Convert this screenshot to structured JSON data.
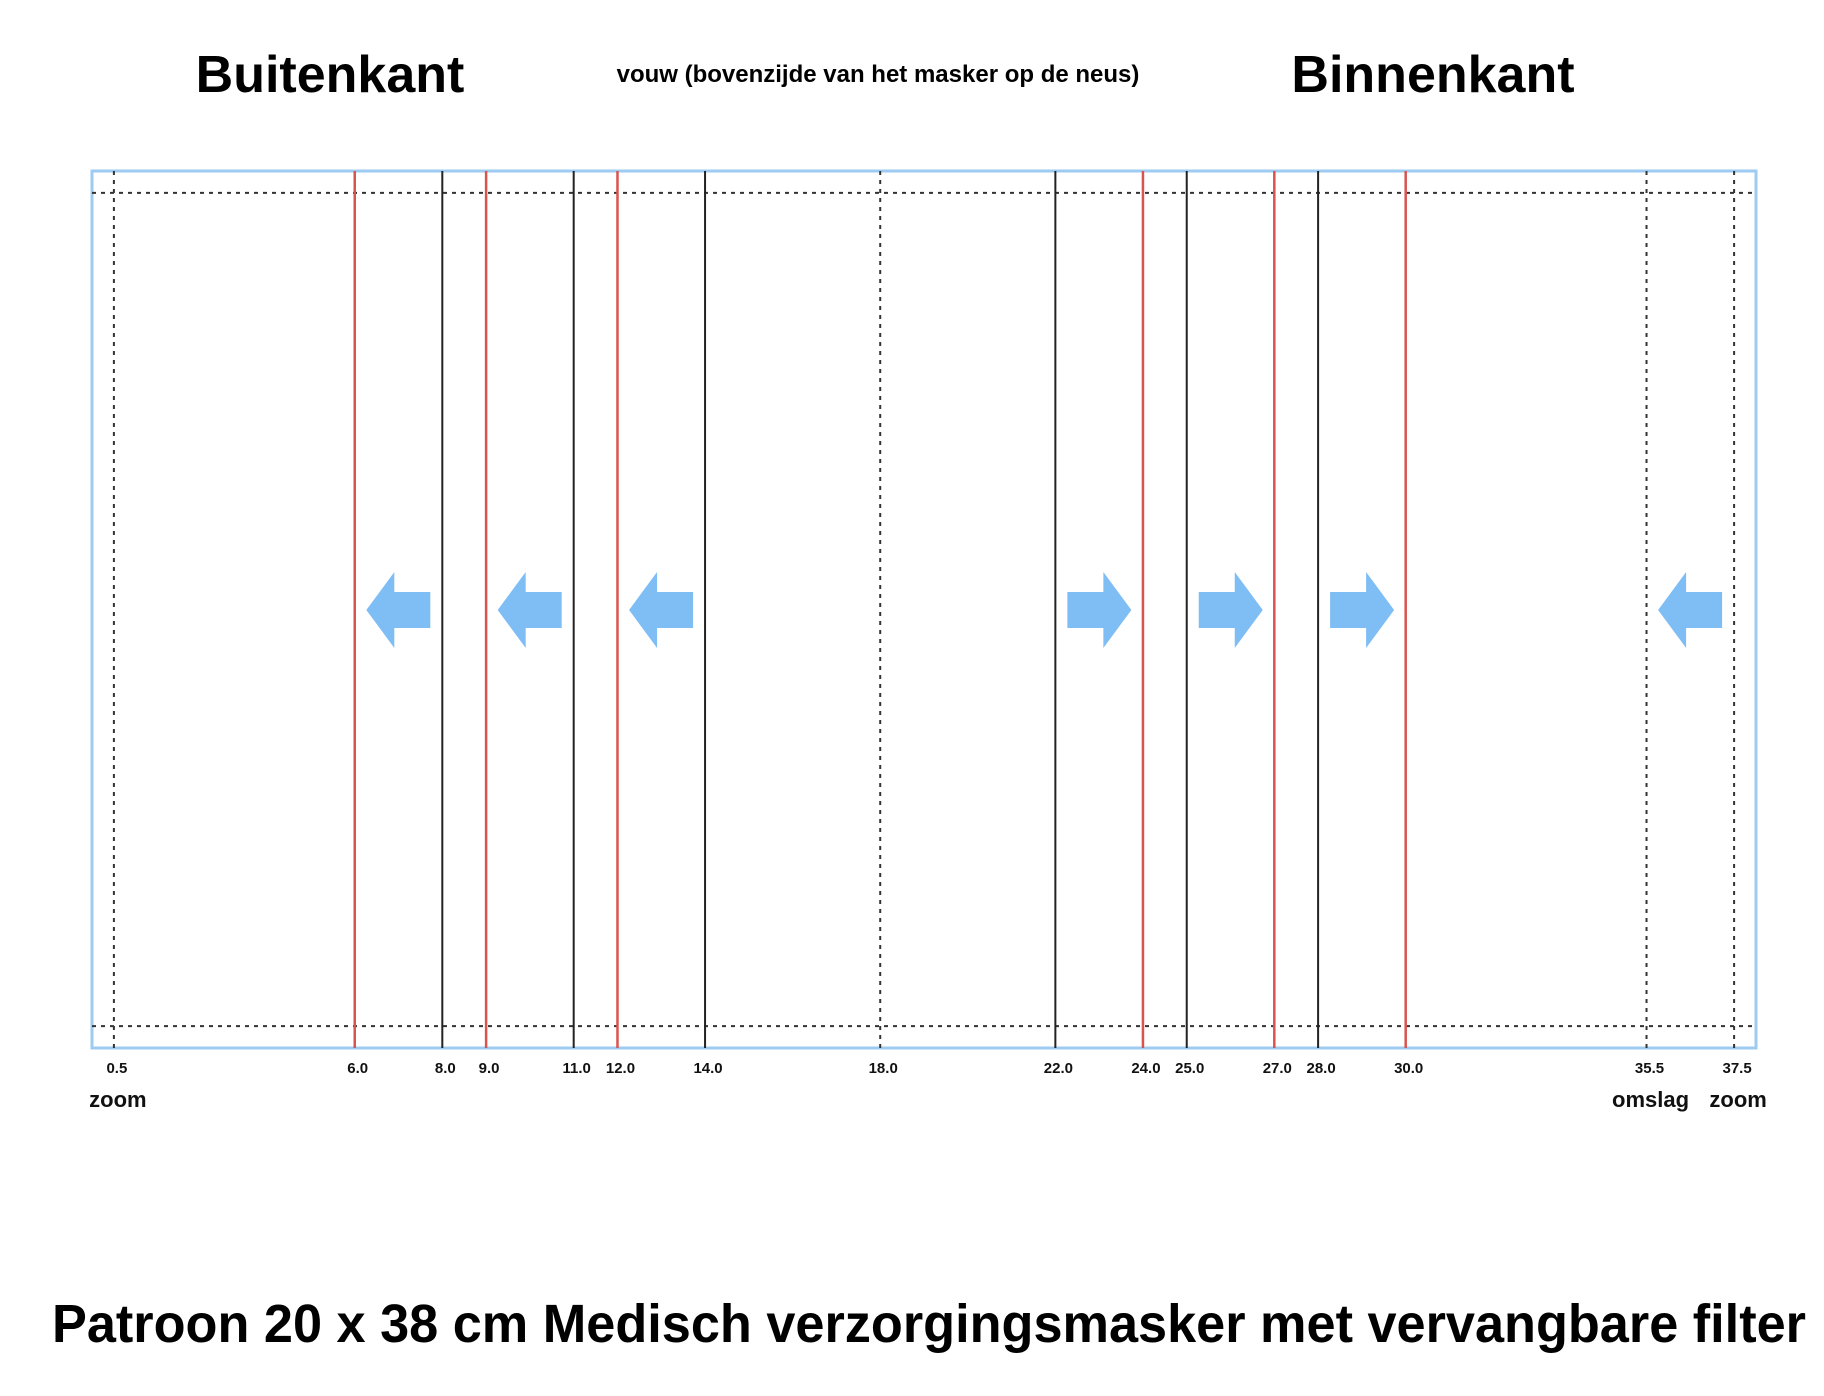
{
  "headings": {
    "outside": "Buitenkant",
    "fold": "vouw (bovenzijde van het masker op de neus)",
    "inside": "Binnenkant"
  },
  "pattern_title": "Patroon 20 x 38 cm Medisch verzorgingsmasker met vervangbare filter",
  "fabric_width_cm": 38,
  "seam_allowance_cm": 0.5,
  "lines": [
    {
      "cm": 0.5,
      "label": "0.5",
      "style": "dotted"
    },
    {
      "cm": 6.0,
      "label": "6.0",
      "style": "red"
    },
    {
      "cm": 8.0,
      "label": "8.0",
      "style": "black"
    },
    {
      "cm": 9.0,
      "label": "9.0",
      "style": "red"
    },
    {
      "cm": 11.0,
      "label": "11.0",
      "style": "black"
    },
    {
      "cm": 12.0,
      "label": "12.0",
      "style": "red"
    },
    {
      "cm": 14.0,
      "label": "14.0",
      "style": "black"
    },
    {
      "cm": 18.0,
      "label": "18.0",
      "style": "dotted"
    },
    {
      "cm": 22.0,
      "label": "22.0",
      "style": "black"
    },
    {
      "cm": 24.0,
      "label": "24.0",
      "style": "red"
    },
    {
      "cm": 25.0,
      "label": "25.0",
      "style": "black"
    },
    {
      "cm": 27.0,
      "label": "27.0",
      "style": "red"
    },
    {
      "cm": 28.0,
      "label": "28.0",
      "style": "black"
    },
    {
      "cm": 30.0,
      "label": "30.0",
      "style": "red"
    },
    {
      "cm": 35.5,
      "label": "35.5",
      "style": "dotted"
    },
    {
      "cm": 37.5,
      "label": "37.5",
      "style": "dotted"
    }
  ],
  "edge_labels": [
    {
      "cm": 0.5,
      "text": "zoom"
    },
    {
      "cm": 35.5,
      "text": "omslag"
    },
    {
      "cm": 37.5,
      "text": "zoom"
    }
  ],
  "fold_arrows": [
    {
      "from_cm": 8.0,
      "to_cm": 6.0,
      "direction": "left"
    },
    {
      "from_cm": 11.0,
      "to_cm": 9.0,
      "direction": "left"
    },
    {
      "from_cm": 14.0,
      "to_cm": 12.0,
      "direction": "left"
    },
    {
      "from_cm": 22.0,
      "to_cm": 24.0,
      "direction": "right"
    },
    {
      "from_cm": 25.0,
      "to_cm": 27.0,
      "direction": "right"
    },
    {
      "from_cm": 28.0,
      "to_cm": 30.0,
      "direction": "right"
    },
    {
      "from_cm": 37.5,
      "to_cm": 35.5,
      "direction": "left"
    }
  ],
  "colors": {
    "border": "#9ecbf2",
    "red_line": "#d9534f",
    "black_line": "#222222",
    "dotted_line": "#333333",
    "arrow": "#7fbdf5"
  }
}
